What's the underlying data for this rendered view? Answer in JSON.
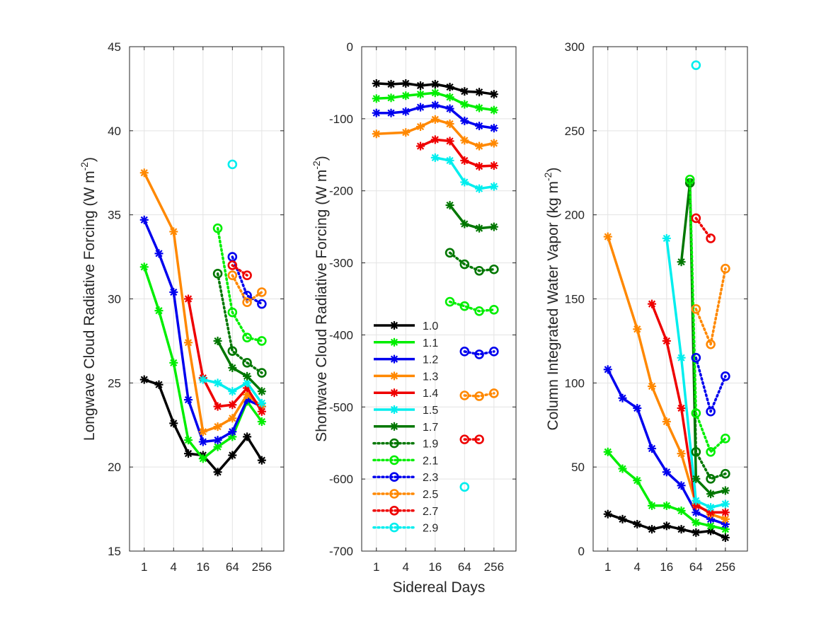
{
  "figure": {
    "shared_xlabel": "Sidereal Days"
  },
  "legend": {
    "entries": [
      {
        "label": "1.0",
        "color": "#000000",
        "style": "solid",
        "marker": "asterisk"
      },
      {
        "label": "1.1",
        "color": "#00ee00",
        "style": "solid",
        "marker": "asterisk"
      },
      {
        "label": "1.2",
        "color": "#0000ee",
        "style": "solid",
        "marker": "asterisk"
      },
      {
        "label": "1.3",
        "color": "#ff8800",
        "style": "solid",
        "marker": "asterisk"
      },
      {
        "label": "1.4",
        "color": "#ee0000",
        "style": "solid",
        "marker": "asterisk"
      },
      {
        "label": "1.5",
        "color": "#00eeee",
        "style": "solid",
        "marker": "asterisk"
      },
      {
        "label": "1.7",
        "color": "#007700",
        "style": "solid",
        "marker": "asterisk"
      },
      {
        "label": "1.9",
        "color": "#007700",
        "style": "dotted",
        "marker": "circle"
      },
      {
        "label": "2.1",
        "color": "#00ee00",
        "style": "dotted",
        "marker": "circle"
      },
      {
        "label": "2.3",
        "color": "#0000ee",
        "style": "dotted",
        "marker": "circle"
      },
      {
        "label": "2.5",
        "color": "#ff8800",
        "style": "dotted",
        "marker": "circle"
      },
      {
        "label": "2.7",
        "color": "#ee0000",
        "style": "dotted",
        "marker": "circle"
      },
      {
        "label": "2.9",
        "color": "#00eeee",
        "style": "dotted",
        "marker": "circle"
      }
    ]
  },
  "chart_data": [
    {
      "type": "line",
      "ylabel": "Longwave Cloud Radiative Forcing (W m",
      "ylabel_sup": "-2",
      "ylabel_end": ")",
      "xlabel": "",
      "xscale": "log2",
      "xlim": [
        0.5,
        724
      ],
      "ylim": [
        15,
        45
      ],
      "xticks": [
        1,
        4,
        16,
        64,
        256
      ],
      "xtick_labels": [
        "1",
        "4",
        "16",
        "64",
        "256"
      ],
      "yticks": [
        15,
        20,
        25,
        30,
        35,
        40,
        45
      ],
      "ytick_labels": [
        "15",
        "20",
        "25",
        "30",
        "35",
        "40",
        "45"
      ],
      "grid": true,
      "series": [
        {
          "name": "1.0",
          "x": [
            1,
            2,
            4,
            8,
            16,
            32,
            64,
            128,
            256
          ],
          "y": [
            25.2,
            24.9,
            22.6,
            20.8,
            20.7,
            19.7,
            20.7,
            21.8,
            20.4
          ]
        },
        {
          "name": "1.1",
          "x": [
            1,
            2,
            4,
            8,
            16,
            32,
            64,
            128,
            256
          ],
          "y": [
            31.9,
            29.3,
            26.2,
            21.6,
            20.5,
            21.2,
            21.8,
            23.9,
            22.7
          ]
        },
        {
          "name": "1.2",
          "x": [
            1,
            2,
            4,
            8,
            16,
            32,
            64,
            128,
            256
          ],
          "y": [
            34.7,
            32.7,
            30.4,
            24.0,
            21.5,
            21.6,
            22.1,
            24.0,
            23.6
          ]
        },
        {
          "name": "1.3",
          "x": [
            1,
            4,
            8,
            16,
            32,
            64,
            128,
            256
          ],
          "y": [
            37.5,
            34.0,
            27.4,
            22.1,
            22.4,
            22.9,
            24.3,
            23.6
          ]
        },
        {
          "name": "1.4",
          "x": [
            8,
            16,
            32,
            64,
            128,
            256
          ],
          "y": [
            30.0,
            25.3,
            23.6,
            23.7,
            24.7,
            23.3
          ]
        },
        {
          "name": "1.5",
          "x": [
            16,
            32,
            64,
            128,
            256
          ],
          "y": [
            25.2,
            25.0,
            24.5,
            25.0,
            23.8
          ]
        },
        {
          "name": "1.7",
          "x": [
            32,
            64,
            128,
            256
          ],
          "y": [
            27.5,
            25.9,
            25.4,
            24.5
          ]
        },
        {
          "name": "1.9",
          "x": [
            32,
            64,
            128,
            256
          ],
          "y": [
            31.5,
            26.9,
            26.2,
            25.6
          ]
        },
        {
          "name": "2.1",
          "x": [
            32,
            64,
            128,
            256
          ],
          "y": [
            34.2,
            29.2,
            27.7,
            27.5
          ]
        },
        {
          "name": "2.3",
          "x": [
            64,
            128,
            256
          ],
          "y": [
            32.5,
            30.2,
            29.7
          ]
        },
        {
          "name": "2.5",
          "x": [
            64,
            128,
            256
          ],
          "y": [
            31.4,
            29.8,
            30.4
          ]
        },
        {
          "name": "2.7",
          "x": [
            64,
            128
          ],
          "y": [
            32.0,
            31.4
          ]
        },
        {
          "name": "2.9",
          "x": [
            64
          ],
          "y": [
            38.0
          ]
        }
      ]
    },
    {
      "type": "line",
      "ylabel": "Shortwave Cloud Radiative Forcing (W m",
      "ylabel_sup": "-2",
      "ylabel_end": ")",
      "xlabel": "Sidereal Days",
      "xscale": "log2",
      "xlim": [
        0.5,
        724
      ],
      "ylim": [
        -700,
        0
      ],
      "xticks": [
        1,
        4,
        16,
        64,
        256
      ],
      "xtick_labels": [
        "1",
        "4",
        "16",
        "64",
        "256"
      ],
      "yticks": [
        -700,
        -600,
        -500,
        -400,
        -300,
        -200,
        -100,
        0
      ],
      "ytick_labels": [
        "-700",
        "-600",
        "-500",
        "-400",
        "-300",
        "-200",
        "-100",
        "0"
      ],
      "grid": true,
      "legend_location": "inside-lower-left",
      "series": [
        {
          "name": "1.0",
          "x": [
            1,
            2,
            4,
            8,
            16,
            32,
            64,
            128,
            256
          ],
          "y": [
            -51,
            -52,
            -51,
            -54,
            -52,
            -56,
            -62,
            -63,
            -66
          ]
        },
        {
          "name": "1.1",
          "x": [
            1,
            2,
            4,
            8,
            16,
            32,
            64,
            128,
            256
          ],
          "y": [
            -72,
            -71,
            -68,
            -66,
            -64,
            -70,
            -80,
            -85,
            -88
          ]
        },
        {
          "name": "1.2",
          "x": [
            1,
            2,
            4,
            8,
            16,
            32,
            64,
            128,
            256
          ],
          "y": [
            -92,
            -92,
            -90,
            -84,
            -81,
            -86,
            -103,
            -110,
            -113
          ]
        },
        {
          "name": "1.3",
          "x": [
            1,
            4,
            8,
            16,
            32,
            64,
            128,
            256
          ],
          "y": [
            -121,
            -119,
            -111,
            -101,
            -107,
            -130,
            -138,
            -134
          ]
        },
        {
          "name": "1.4",
          "x": [
            8,
            16,
            32,
            64,
            128,
            256
          ],
          "y": [
            -138,
            -129,
            -131,
            -158,
            -166,
            -165
          ]
        },
        {
          "name": "1.5",
          "x": [
            16,
            32,
            64,
            128,
            256
          ],
          "y": [
            -154,
            -158,
            -188,
            -197,
            -194
          ]
        },
        {
          "name": "1.7",
          "x": [
            32,
            64,
            128,
            256
          ],
          "y": [
            -220,
            -246,
            -252,
            -250
          ]
        },
        {
          "name": "1.9",
          "x": [
            32,
            64,
            128,
            256
          ],
          "y": [
            -286,
            -302,
            -311,
            -309
          ]
        },
        {
          "name": "2.1",
          "x": [
            32,
            64,
            128,
            256
          ],
          "y": [
            -354,
            -360,
            -367,
            -365
          ]
        },
        {
          "name": "2.3",
          "x": [
            64,
            128,
            256
          ],
          "y": [
            -423,
            -427,
            -423
          ]
        },
        {
          "name": "2.5",
          "x": [
            64,
            128,
            256
          ],
          "y": [
            -484,
            -485,
            -481
          ]
        },
        {
          "name": "2.7",
          "x": [
            64,
            128
          ],
          "y": [
            -545,
            -545
          ]
        },
        {
          "name": "2.9",
          "x": [
            64
          ],
          "y": [
            -611
          ]
        }
      ]
    },
    {
      "type": "line",
      "ylabel": "Column Integrated Water Vapor (kg m",
      "ylabel_sup": "-2",
      "ylabel_end": ")",
      "xlabel": "",
      "xscale": "log2",
      "xlim": [
        0.5,
        724
      ],
      "ylim": [
        0,
        300
      ],
      "xticks": [
        1,
        4,
        16,
        64,
        256
      ],
      "xtick_labels": [
        "1",
        "4",
        "16",
        "64",
        "256"
      ],
      "yticks": [
        0,
        50,
        100,
        150,
        200,
        250,
        300
      ],
      "ytick_labels": [
        "0",
        "50",
        "100",
        "150",
        "200",
        "250",
        "300"
      ],
      "grid": true,
      "series": [
        {
          "name": "1.0",
          "x": [
            1,
            2,
            4,
            8,
            16,
            32,
            64,
            128,
            256
          ],
          "y": [
            22,
            19,
            16,
            13,
            15,
            13,
            11,
            12,
            8
          ]
        },
        {
          "name": "1.1",
          "x": [
            1,
            2,
            4,
            8,
            16,
            32,
            64,
            128,
            256
          ],
          "y": [
            59,
            49,
            42,
            27,
            27,
            24,
            17,
            15,
            13
          ]
        },
        {
          "name": "1.2",
          "x": [
            1,
            2,
            4,
            8,
            16,
            32,
            64,
            128,
            256
          ],
          "y": [
            108,
            91,
            85,
            61,
            47,
            39,
            23,
            19,
            16
          ]
        },
        {
          "name": "1.3",
          "x": [
            1,
            4,
            8,
            16,
            32,
            64,
            128,
            256
          ],
          "y": [
            187,
            132,
            98,
            77,
            58,
            28,
            22,
            19
          ]
        },
        {
          "name": "1.4",
          "x": [
            8,
            16,
            32,
            64,
            128,
            256
          ],
          "y": [
            147,
            125,
            85,
            27,
            23,
            23
          ]
        },
        {
          "name": "1.5",
          "x": [
            16,
            32,
            64,
            128,
            256
          ],
          "y": [
            186,
            115,
            30,
            26,
            28
          ]
        },
        {
          "name": "1.7",
          "x": [
            32,
            48,
            64,
            128,
            256
          ],
          "y": [
            172,
            219,
            43,
            34,
            36
          ]
        },
        {
          "name": "1.9",
          "x": [
            48,
            64,
            128,
            256
          ],
          "y": [
            219,
            59,
            43,
            46
          ]
        },
        {
          "name": "2.1",
          "x": [
            48,
            64,
            128,
            256
          ],
          "y": [
            221,
            82,
            59,
            67
          ]
        },
        {
          "name": "2.3",
          "x": [
            64,
            128,
            256
          ],
          "y": [
            115,
            83,
            104
          ]
        },
        {
          "name": "2.5",
          "x": [
            64,
            128,
            256
          ],
          "y": [
            144,
            123,
            168
          ]
        },
        {
          "name": "2.7",
          "x": [
            64,
            128
          ],
          "y": [
            198,
            186
          ]
        },
        {
          "name": "2.9",
          "x": [
            64
          ],
          "y": [
            289
          ]
        }
      ]
    }
  ]
}
